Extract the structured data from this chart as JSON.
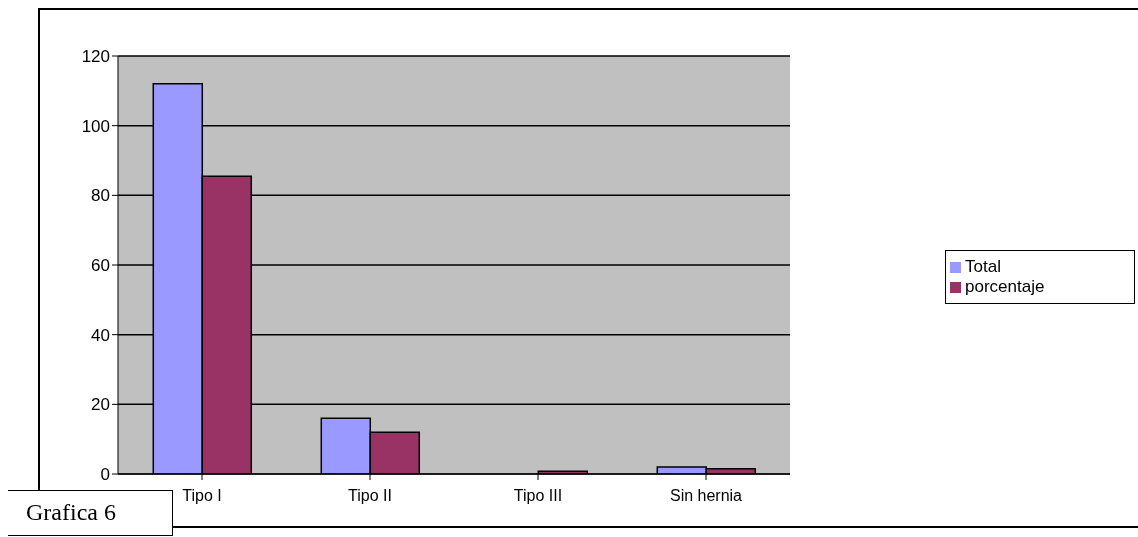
{
  "chart_data": {
    "type": "bar",
    "categories": [
      "Tipo I",
      "Tipo II",
      "Tipo III",
      "Sin hernia"
    ],
    "series": [
      {
        "name": "Total",
        "color": "#9999ff",
        "values": [
          112,
          16,
          0,
          2
        ]
      },
      {
        "name": "porcentaje",
        "color": "#993366",
        "values": [
          85.5,
          12,
          0.8,
          1.5
        ]
      }
    ],
    "ylim": [
      0,
      120
    ],
    "yticks": [
      0,
      20,
      40,
      60,
      80,
      100,
      120
    ],
    "grid": "y",
    "legend": "right",
    "annotations": [
      "Grafica 6"
    ]
  }
}
